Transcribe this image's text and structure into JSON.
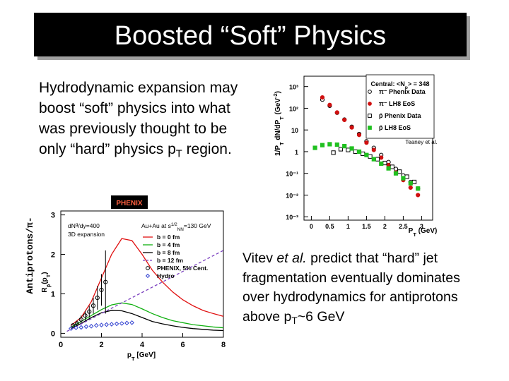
{
  "title": "Boosted “Soft” Physics",
  "left_text": [
    "Hydrodynamic expansion may boost “soft” physics into what was previously thought to be only “hard” physics p",
    {
      "sub": "T"
    },
    " region."
  ],
  "right_text": [
    "Vitev ",
    {
      "em": "et al."
    },
    " predict that “hard” jet fragmentation eventually dominates over hydrodynamics for antiprotons above p",
    {
      "sub": "T"
    },
    "~6 GeV"
  ],
  "side_label": "Antiprotons/π-",
  "logo": "PHENIX",
  "chart_data": [
    {
      "type": "scatter",
      "log_y": true,
      "legend": "upper right",
      "y_label": [
        "1/P",
        {
          "sub": "T"
        },
        " dN/dP",
        {
          "sub": "T"
        },
        " (GeV",
        {
          "sup": "-2"
        },
        ")"
      ],
      "x_label": [
        "P",
        {
          "sub": "T"
        },
        " (GeV)"
      ],
      "legend_title": [
        "Central: <N",
        {
          "sub": "p"
        },
        "> = 348"
      ],
      "annotation": "Teaney et al.",
      "xlim": [
        -0.2,
        3.3
      ],
      "xticks": [
        0,
        0.5,
        1,
        1.5,
        2,
        2.5,
        3
      ],
      "ylim": [
        0.0007,
        3000
      ],
      "yticks": [
        {
          "value": 1000,
          "label": "10³"
        },
        {
          "value": 100,
          "label": "10²"
        },
        10,
        1,
        {
          "value": 0.1,
          "label": "10⁻¹"
        },
        {
          "value": 0.01,
          "label": "10⁻²"
        },
        {
          "value": 0.001,
          "label": "10⁻³"
        }
      ],
      "series": [
        {
          "name": "π⁻ Phenix Data",
          "color": "#000000",
          "marker": "circle-open",
          "x": [
            0.3,
            0.5,
            0.7,
            0.9,
            1.1,
            1.3,
            1.5,
            1.7,
            1.9,
            2.1,
            2.3,
            2.5,
            2.7,
            2.9
          ],
          "values": [
            250,
            130,
            62,
            30,
            14,
            6.5,
            3,
            1.5,
            0.7,
            0.33,
            0.16,
            0.08,
            0.04,
            0.02
          ]
        },
        {
          "name": "π⁻ LH8 EoS",
          "color": "#d01010",
          "marker": "circle-filled",
          "x": [
            0.3,
            0.5,
            0.7,
            0.9,
            1.1,
            1.3,
            1.5,
            1.7,
            1.9,
            2.1,
            2.3,
            2.5,
            2.7,
            2.9
          ],
          "values": [
            316,
            142,
            64,
            29,
            13,
            5.9,
            2.6,
            1.2,
            0.53,
            0.24,
            0.11,
            0.049,
            0.022,
            0.01
          ]
        },
        {
          "name": "p̄ Phenix Data",
          "color": "#000000",
          "marker": "square-open",
          "x": [
            0.6,
            0.8,
            1.0,
            1.2,
            1.4,
            1.6,
            1.8,
            2.0,
            2.2,
            2.4,
            2.6,
            2.8
          ],
          "values": [
            0.9,
            1.3,
            1.2,
            1.0,
            0.8,
            0.6,
            0.45,
            0.3,
            0.2,
            0.12,
            0.07,
            0.04
          ]
        },
        {
          "name": "p̄ LH8 EoS",
          "color": "#20c020",
          "marker": "square-filled",
          "x": [
            0.1,
            0.3,
            0.5,
            0.7,
            0.9,
            1.1,
            1.3,
            1.5,
            1.7,
            1.9,
            2.1,
            2.3,
            2.5,
            2.7,
            2.9
          ],
          "values": [
            1.5,
            2,
            2.2,
            2.1,
            1.8,
            1.4,
            1.0,
            0.7,
            0.45,
            0.28,
            0.17,
            0.1,
            0.06,
            0.035,
            0.02
          ]
        }
      ]
    },
    {
      "type": "line",
      "log_y": false,
      "legend": "upper right",
      "y_label": [
        "R",
        {
          "sub": "p̄"
        },
        "(p",
        {
          "sub": "T"
        },
        ")"
      ],
      "x_label": [
        "p",
        {
          "sub": "T"
        },
        " [GeV]"
      ],
      "annotations": [
        [
          "dN",
          {
            "sup": "g"
          },
          "/dy=400"
        ],
        [
          "3D expansion"
        ],
        [
          "Au+Au at s",
          {
            "sup": "1/2"
          },
          {
            "sub": "NN"
          },
          "=130 GeV"
        ]
      ],
      "xlim": [
        0,
        8
      ],
      "xticks": [
        0,
        2,
        4,
        6,
        8
      ],
      "ylim": [
        -0.1,
        3.1
      ],
      "yticks": [
        0,
        1,
        2,
        3
      ],
      "series": [
        {
          "name": "b = 0 fm",
          "color": "#e01010",
          "line": "solid",
          "x": [
            0.5,
            1,
            1.5,
            2,
            2.5,
            3,
            3.5,
            4,
            4.5,
            5,
            5.5,
            6,
            6.5,
            7,
            7.5,
            8
          ],
          "values": [
            0.2,
            0.4,
            0.8,
            1.4,
            2.0,
            2.4,
            2.35,
            2.0,
            1.6,
            1.3,
            1.05,
            0.85,
            0.7,
            0.58,
            0.5,
            0.43
          ]
        },
        {
          "name": "b = 4 fm",
          "color": "#10b010",
          "line": "solid",
          "x": [
            0.5,
            1,
            1.5,
            2,
            2.5,
            3,
            3.5,
            4,
            4.5,
            5,
            5.5,
            6,
            6.5,
            7,
            7.5,
            8
          ],
          "values": [
            0.15,
            0.3,
            0.45,
            0.6,
            0.72,
            0.77,
            0.73,
            0.62,
            0.5,
            0.4,
            0.32,
            0.27,
            0.22,
            0.19,
            0.16,
            0.14
          ]
        },
        {
          "name": "b = 8 fm",
          "color": "#000000",
          "line": "solid",
          "x": [
            0.5,
            1,
            1.5,
            2,
            2.5,
            3,
            3.5,
            4,
            4.5,
            5,
            5.5,
            6,
            6.5,
            7,
            7.5,
            8
          ],
          "values": [
            0.12,
            0.25,
            0.4,
            0.52,
            0.58,
            0.57,
            0.5,
            0.4,
            0.3,
            0.24,
            0.19,
            0.15,
            0.12,
            0.1,
            0.08,
            0.07
          ]
        },
        {
          "name": "b = 12 fm",
          "color": "#7a3fbf",
          "line": "dashed",
          "x": [
            0.3,
            8
          ],
          "values": [
            0.05,
            2.1
          ]
        },
        {
          "name": "PHENIX, 5% Cent.",
          "color": "#000000",
          "marker": "circle-open",
          "x": [
            0.6,
            0.8,
            1.0,
            1.2,
            1.4,
            1.6,
            1.8,
            2.0,
            2.2
          ],
          "values": [
            0.2,
            0.25,
            0.35,
            0.45,
            0.55,
            0.7,
            0.9,
            1.1,
            1.3
          ],
          "errors": [
            0.05,
            0.07,
            0.1,
            0.12,
            0.15,
            0.2,
            0.3,
            0.4,
            0.8
          ]
        },
        {
          "name": "Hydro",
          "color": "#3040d0",
          "marker": "diamond-open",
          "x": [
            0.5,
            0.75,
            1,
            1.25,
            1.5,
            1.75,
            2,
            2.25,
            2.5,
            2.75,
            3,
            3.25,
            3.5
          ],
          "values": [
            0.12,
            0.14,
            0.15,
            0.17,
            0.18,
            0.2,
            0.21,
            0.22,
            0.23,
            0.24,
            0.25,
            0.26,
            0.27
          ]
        }
      ]
    }
  ]
}
